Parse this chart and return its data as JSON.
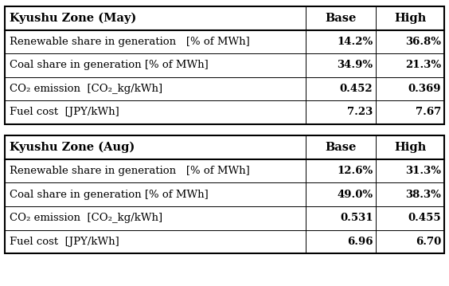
{
  "table1_title": "Kyushu Zone (May)",
  "table2_title": "Kyushu Zone (Aug)",
  "col_headers": [
    "Base",
    "High"
  ],
  "rows1": [
    [
      "Renewable share in generation   [% of MWh]",
      "14.2%",
      "36.8%"
    ],
    [
      "Coal share in generation [% of MWh]",
      "34.9%",
      "21.3%"
    ],
    [
      "CO₂ emission  [CO₂_kg/kWh]",
      "0.452",
      "0.369"
    ],
    [
      "Fuel cost  [JPY/kWh]",
      "7.23",
      "7.67"
    ]
  ],
  "rows2": [
    [
      "Renewable share in generation   [% of MWh]",
      "12.6%",
      "31.3%"
    ],
    [
      "Coal share in generation [% of MWh]",
      "49.0%",
      "38.3%"
    ],
    [
      "CO₂ emission  [CO₂_kg/kWh]",
      "0.531",
      "0.455"
    ],
    [
      "Fuel cost  [JPY/kWh]",
      "6.96",
      "6.70"
    ]
  ],
  "border_color": "#000000",
  "title_fontsize": 10.5,
  "data_fontsize": 9.5,
  "figwidth": 5.64,
  "figheight": 3.59,
  "dpi": 100
}
